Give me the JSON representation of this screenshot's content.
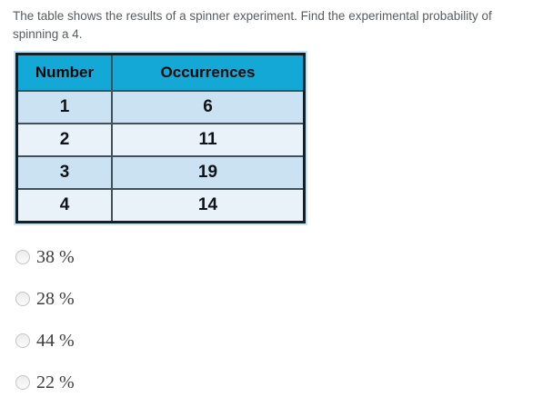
{
  "question": {
    "text": "The table shows the results of a spinner experiment. Find the experimental probability of spinning a 4."
  },
  "table": {
    "headers": [
      "Number",
      "Occurrences"
    ],
    "rows": [
      {
        "number": "1",
        "occurrences": "6"
      },
      {
        "number": "2",
        "occurrences": "11"
      },
      {
        "number": "3",
        "occurrences": "19"
      },
      {
        "number": "4",
        "occurrences": "14"
      }
    ]
  },
  "options": [
    {
      "label": "38 %"
    },
    {
      "label": "28 %"
    },
    {
      "label": "44 %"
    },
    {
      "label": "22 %"
    }
  ],
  "colors": {
    "header_bg": "#14a8d6",
    "row_dark": "#cbe2f2",
    "row_light": "#e9f1f9",
    "outer_border": "#142028",
    "inner_border": "#42525b",
    "question_text": "#575c61",
    "option_text": "#3d3d3d"
  }
}
